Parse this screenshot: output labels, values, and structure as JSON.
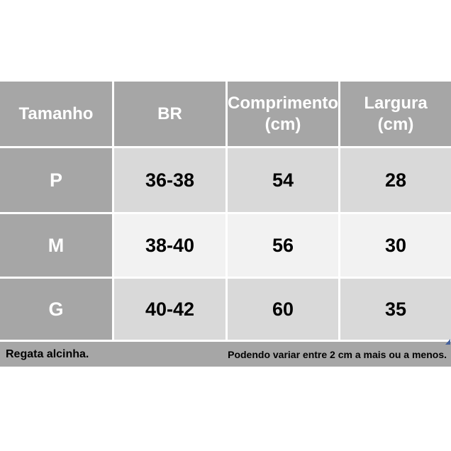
{
  "chart_data": {
    "type": "table",
    "title": "",
    "columns": [
      "Tamanho",
      "BR",
      "Comprimento (cm)",
      "Largura (cm)"
    ],
    "rows": [
      [
        "P",
        "36-38",
        "54",
        "28"
      ],
      [
        "M",
        "38-40",
        "56",
        "30"
      ],
      [
        "G",
        "40-42",
        "60",
        "35"
      ]
    ],
    "notes": [
      "Regata alcinha.",
      "Podendo variar entre 2 cm a mais ou a menos."
    ]
  },
  "table": {
    "headers": {
      "tamanho": "Tamanho",
      "br": "BR",
      "comprimento": "Comprimento\n(cm)",
      "largura": "Largura\n(cm)"
    },
    "rows": [
      {
        "size": "P",
        "br": "36-38",
        "comprimento": "54",
        "largura": "28"
      },
      {
        "size": "M",
        "br": "38-40",
        "comprimento": "56",
        "largura": "30"
      },
      {
        "size": "G",
        "br": "40-42",
        "comprimento": "60",
        "largura": "35"
      }
    ],
    "footer": {
      "left": "Regata alcinha.",
      "right": "Podendo variar entre 2 cm a mais ou a menos."
    }
  },
  "colors": {
    "header_bg": "#a6a6a6",
    "row_label_bg": "#a6a6a6",
    "row_light_bg": "#d9d9d9",
    "row_lighter_bg": "#f2f2f2",
    "footer_bg": "#a6a6a6",
    "gridline": "#ffffff",
    "header_text": "#ffffff",
    "cell_text": "#000000",
    "corner_marker_blue": "#44619d"
  }
}
